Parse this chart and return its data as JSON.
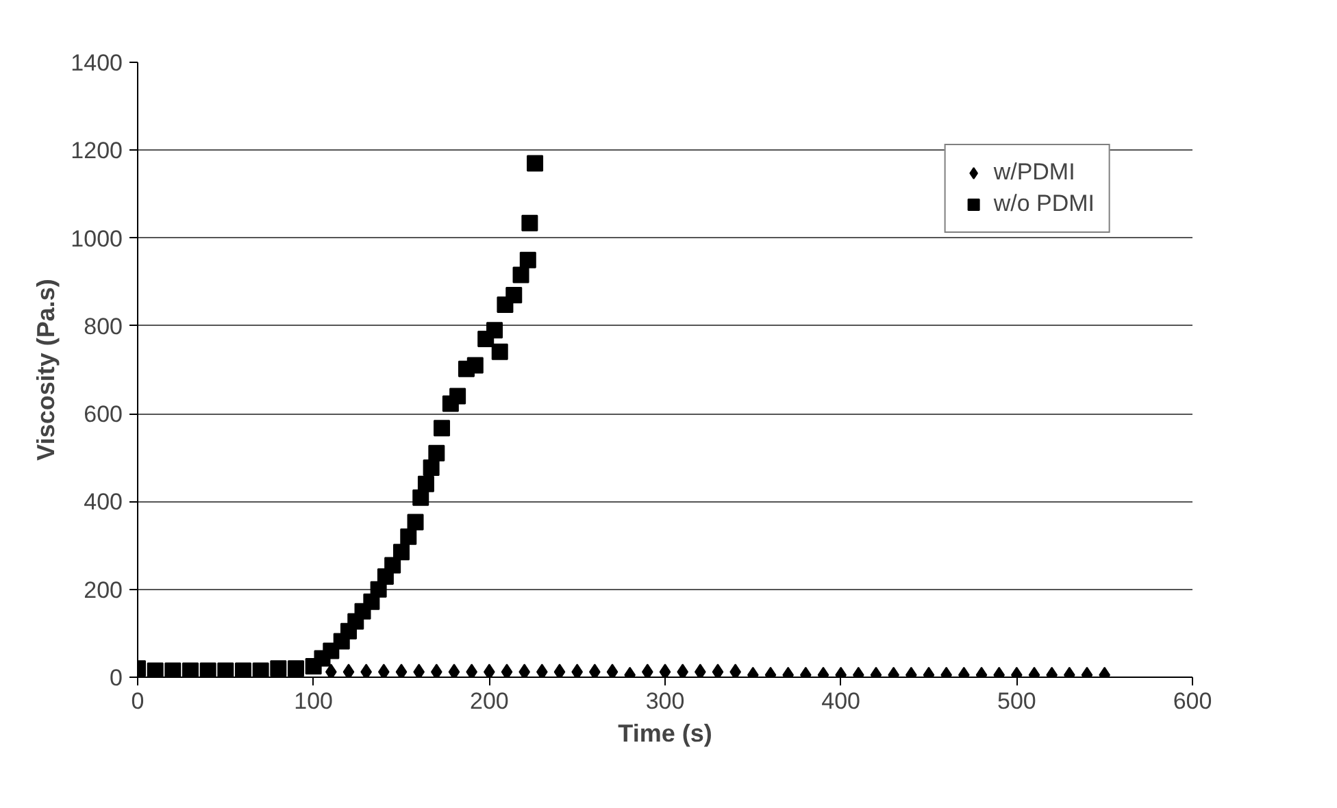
{
  "chart_data": {
    "type": "scatter",
    "xlabel": "Time (s)",
    "ylabel": "Viscosity (Pa.s)",
    "xlim": [
      0,
      600
    ],
    "ylim": [
      0,
      1400
    ],
    "xticks": [
      0,
      100,
      200,
      300,
      400,
      500,
      600
    ],
    "yticks": [
      0,
      200,
      400,
      600,
      800,
      1000,
      1200,
      1400
    ],
    "grid": "y",
    "legend": "top right",
    "series": [
      {
        "name": "w/PDMI",
        "color": "#000000",
        "marker": "diamond",
        "x": [
          110,
          120,
          130,
          140,
          150,
          160,
          170,
          180,
          190,
          200,
          210,
          220,
          230,
          240,
          250,
          260,
          270,
          280,
          290,
          300,
          310,
          320,
          330,
          340,
          350,
          360,
          370,
          380,
          390,
          400,
          410,
          420,
          430,
          440,
          450,
          460,
          470,
          480,
          490,
          500,
          510,
          520,
          530,
          540,
          550
        ],
        "values": [
          12,
          12,
          12,
          12,
          12,
          12,
          12,
          12,
          12,
          12,
          12,
          12,
          12,
          12,
          12,
          12,
          12,
          5,
          12,
          12,
          12,
          12,
          12,
          12,
          5,
          5,
          5,
          5,
          5,
          5,
          5,
          5,
          5,
          5,
          5,
          5,
          5,
          5,
          5,
          5,
          5,
          5,
          5,
          5,
          5
        ]
      },
      {
        "name": "w/o PDMI",
        "color": "#000000",
        "marker": "square",
        "x": [
          0,
          10,
          20,
          30,
          40,
          50,
          60,
          70,
          80,
          90,
          100,
          105,
          110,
          116,
          120,
          124,
          128,
          133,
          137,
          141,
          145,
          150,
          154,
          158,
          161,
          164,
          167,
          170,
          173,
          178,
          182,
          187,
          192,
          198,
          203,
          206,
          209,
          214,
          218,
          222,
          223,
          226
        ],
        "values": [
          20,
          15,
          15,
          15,
          15,
          15,
          15,
          15,
          20,
          20,
          25,
          43,
          60,
          82,
          105,
          127,
          150,
          172,
          200,
          229,
          255,
          285,
          320,
          353,
          409,
          440,
          477,
          510,
          567,
          623,
          640,
          702,
          710,
          770,
          790,
          741,
          848,
          870,
          916,
          950,
          1034,
          1170
        ]
      }
    ]
  }
}
